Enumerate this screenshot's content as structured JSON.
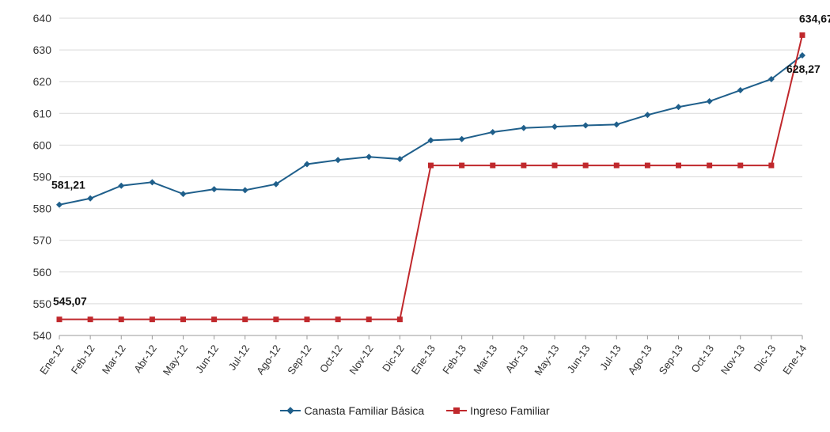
{
  "chart_data": {
    "type": "line",
    "title": "",
    "xlabel": "",
    "ylabel": "",
    "ylim": [
      540,
      640
    ],
    "yticks": [
      "540",
      "550",
      "560",
      "570",
      "580",
      "590",
      "600",
      "610",
      "620",
      "630",
      "640"
    ],
    "categories": [
      "Ene-12",
      "Feb-12",
      "Mar-12",
      "Abr-12",
      "May-12",
      "Jun-12",
      "Jul-12",
      "Ago-12",
      "Sep-12",
      "Oct-12",
      "Nov-12",
      "Dic-12",
      "Ene-13",
      "Feb-13",
      "Mar-13",
      "Abr-13",
      "May-13",
      "Jun-13",
      "Jul-13",
      "Ago-13",
      "Sep-13",
      "Oct-13",
      "Nov-13",
      "Dic-13",
      "Ene-14"
    ],
    "grid": true,
    "legend_position": "bottom",
    "series": [
      {
        "name": "Canasta Familiar Básica",
        "color": "#1f5f8b",
        "marker": "diamond",
        "values": [
          581.21,
          583.2,
          587.2,
          588.3,
          584.6,
          586.1,
          585.8,
          587.7,
          594.0,
          595.3,
          596.3,
          595.6,
          601.5,
          601.9,
          604.1,
          605.4,
          605.8,
          606.2,
          606.5,
          609.5,
          612.0,
          613.8,
          617.3,
          620.8,
          628.27
        ]
      },
      {
        "name": "Ingreso Familiar",
        "color": "#c0282c",
        "marker": "square",
        "values": [
          545.07,
          545.07,
          545.07,
          545.07,
          545.07,
          545.07,
          545.07,
          545.07,
          545.07,
          545.07,
          545.07,
          545.07,
          593.6,
          593.6,
          593.6,
          593.6,
          593.6,
          593.6,
          593.6,
          593.6,
          593.6,
          593.6,
          593.6,
          593.6,
          634.67
        ]
      }
    ],
    "annotations": [
      {
        "series": 0,
        "index": 0,
        "text": "581,21"
      },
      {
        "series": 1,
        "index": 0,
        "text": "545,07"
      },
      {
        "series": 1,
        "index": 24,
        "text": "634,67"
      },
      {
        "series": 0,
        "index": 24,
        "text": "628,27"
      }
    ]
  }
}
